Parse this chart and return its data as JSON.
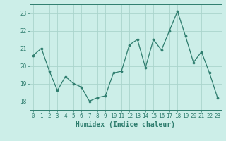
{
  "x": [
    0,
    1,
    2,
    3,
    4,
    5,
    6,
    7,
    8,
    9,
    10,
    11,
    12,
    13,
    14,
    15,
    16,
    17,
    18,
    19,
    20,
    21,
    22,
    23
  ],
  "y": [
    20.6,
    21.0,
    19.7,
    18.6,
    19.4,
    19.0,
    18.8,
    18.0,
    18.2,
    18.3,
    19.6,
    19.7,
    21.2,
    21.5,
    19.9,
    21.5,
    20.9,
    22.0,
    23.1,
    21.7,
    20.2,
    20.8,
    19.6,
    18.2
  ],
  "line_color": "#2E7D6E",
  "marker": "o",
  "marker_size": 2.2,
  "bg_color": "#cceee8",
  "grid_color": "#aad4cc",
  "axis_color": "#2E7D6E",
  "xlabel": "Humidex (Indice chaleur)",
  "ylim": [
    17.5,
    23.5
  ],
  "xlim": [
    -0.5,
    23.5
  ],
  "yticks": [
    18,
    19,
    20,
    21,
    22,
    23
  ],
  "xticks": [
    0,
    1,
    2,
    3,
    4,
    5,
    6,
    7,
    8,
    9,
    10,
    11,
    12,
    13,
    14,
    15,
    16,
    17,
    18,
    19,
    20,
    21,
    22,
    23
  ],
  "font_size": 5.5,
  "label_font_size": 7.0
}
